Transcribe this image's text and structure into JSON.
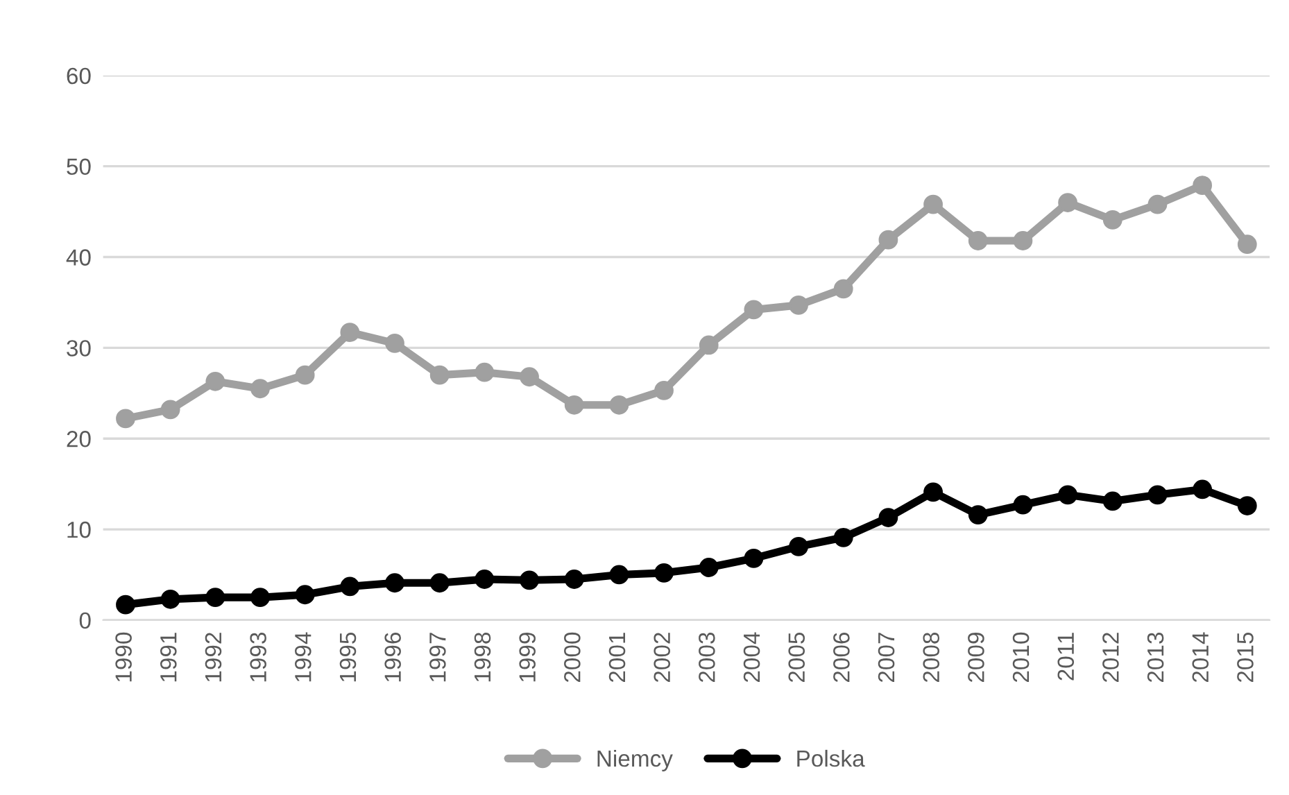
{
  "chart_data": {
    "type": "line",
    "categories": [
      "1990",
      "1991",
      "1992",
      "1993",
      "1994",
      "1995",
      "1996",
      "1997",
      "1998",
      "1999",
      "2000",
      "2001",
      "2002",
      "2003",
      "2004",
      "2005",
      "2006",
      "2007",
      "2008",
      "2009",
      "2010",
      "2011",
      "2012",
      "2013",
      "2014",
      "2015"
    ],
    "series": [
      {
        "name": "Niemcy",
        "color": "#a0a0a0",
        "values": [
          22.2,
          23.2,
          26.3,
          25.5,
          27.0,
          31.7,
          30.5,
          27.0,
          27.3,
          26.8,
          23.7,
          23.7,
          25.3,
          30.3,
          34.2,
          34.7,
          36.5,
          41.9,
          45.8,
          41.8,
          41.8,
          46.0,
          44.1,
          45.8,
          47.9,
          41.4
        ]
      },
      {
        "name": "Polska",
        "color": "#000000",
        "values": [
          1.7,
          2.3,
          2.5,
          2.5,
          2.8,
          3.7,
          4.1,
          4.1,
          4.5,
          4.4,
          4.5,
          5.0,
          5.2,
          5.8,
          6.8,
          8.1,
          9.1,
          11.3,
          14.1,
          11.6,
          12.7,
          13.8,
          13.1,
          13.8,
          14.4,
          12.6
        ]
      }
    ],
    "ylim": [
      0,
      60
    ],
    "yticks": [
      0,
      10,
      20,
      30,
      40,
      50,
      60
    ],
    "grid": "y",
    "legend": "bottom",
    "marker": "circle",
    "line_style": "solid"
  }
}
